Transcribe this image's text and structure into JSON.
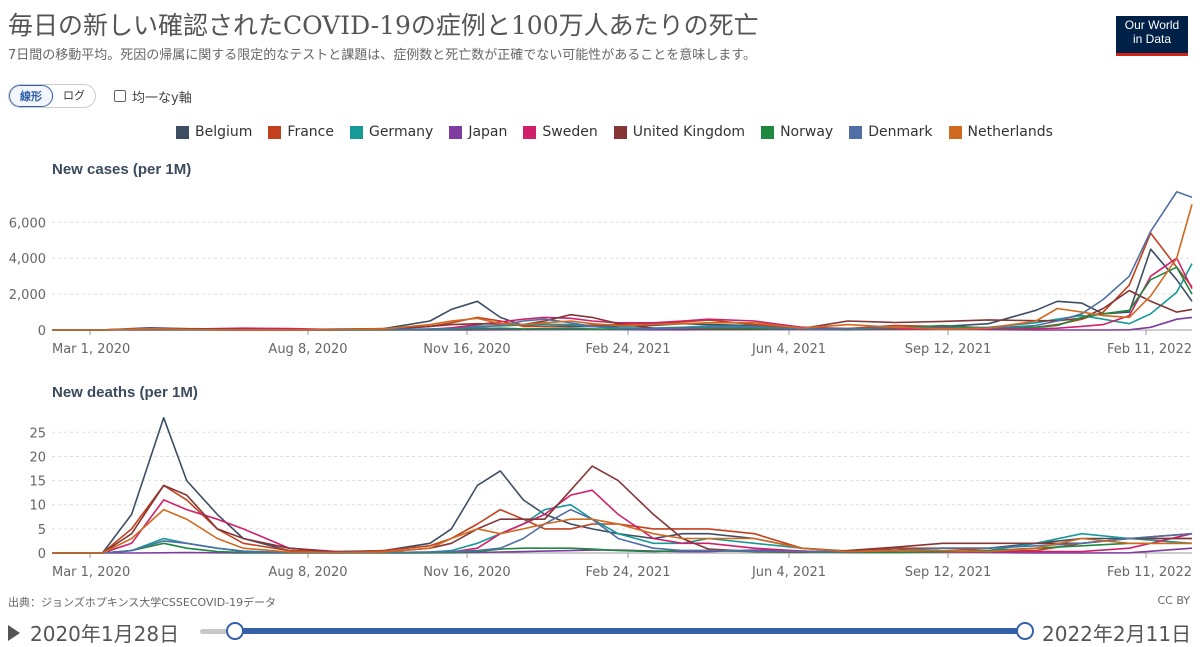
{
  "header": {
    "title": "毎日の新しい確認されたCOVID-19の症例と100万人あたりの死亡",
    "subtitle": "7日間の移動平均。死因の帰属に関する限定的なテストと課題は、症例数と死亡数が正確でない可能性があることを意味します。",
    "logo_line1": "Our World",
    "logo_line2": "in Data"
  },
  "controls": {
    "linear_label": "線形",
    "log_label": "ログ",
    "uniform_axis_label": "均一なy軸"
  },
  "footer": {
    "source": "出典：ジョンズホプキンス大学CSSECOVID-19データ",
    "license": "CC BY"
  },
  "timeline": {
    "start_label": "2020年1月28日",
    "end_label": "2022年2月11日",
    "start_fraction": 0.0,
    "end_fraction": 1.0
  },
  "chart_data": [
    {
      "type": "line",
      "title": "New cases (per 1M)",
      "x_ticks": [
        "Mar 1, 2020",
        "Aug 8, 2020",
        "Nov 16, 2020",
        "Feb 24, 2021",
        "Jun 4, 2021",
        "Sep 12, 2021",
        "Feb 11, 2022"
      ],
      "y_ticks": [
        "0",
        "2,000",
        "4,000",
        "6,000"
      ],
      "ylim": [
        0,
        7800
      ],
      "x": [
        "2020-01-28",
        "2020-03-01",
        "2020-04-01",
        "2020-05-01",
        "2020-06-01",
        "2020-07-01",
        "2020-08-01",
        "2020-09-01",
        "2020-10-01",
        "2020-10-15",
        "2020-11-01",
        "2020-11-16",
        "2020-12-01",
        "2020-12-15",
        "2021-01-01",
        "2021-01-15",
        "2021-02-01",
        "2021-02-24",
        "2021-03-15",
        "2021-04-01",
        "2021-05-01",
        "2021-06-01",
        "2021-07-01",
        "2021-08-01",
        "2021-09-01",
        "2021-10-01",
        "2021-11-01",
        "2021-11-15",
        "2021-12-01",
        "2021-12-15",
        "2022-01-01",
        "2022-01-15",
        "2022-02-01",
        "2022-02-11"
      ],
      "series": [
        {
          "name": "Belgium",
          "color": "#3d4e63",
          "values": [
            0,
            5,
            120,
            60,
            20,
            15,
            50,
            80,
            500,
            1150,
            1600,
            700,
            250,
            200,
            180,
            200,
            220,
            250,
            350,
            300,
            250,
            150,
            80,
            120,
            200,
            350,
            1100,
            1600,
            1500,
            900,
            1000,
            4500,
            2800,
            1600
          ]
        },
        {
          "name": "France",
          "color": "#c2411c",
          "values": [
            0,
            3,
            70,
            30,
            8,
            10,
            30,
            80,
            200,
            400,
            700,
            500,
            200,
            200,
            250,
            280,
            300,
            350,
            450,
            550,
            300,
            100,
            80,
            250,
            200,
            100,
            150,
            300,
            600,
            1000,
            2500,
            5400,
            3500,
            2400
          ]
        },
        {
          "name": "Germany",
          "color": "#179a97",
          "values": [
            0,
            2,
            70,
            20,
            5,
            5,
            10,
            20,
            40,
            90,
            220,
            230,
            280,
            320,
            300,
            200,
            120,
            110,
            150,
            220,
            200,
            40,
            10,
            60,
            120,
            150,
            400,
            600,
            800,
            600,
            350,
            900,
            2100,
            3700
          ]
        },
        {
          "name": "Japan",
          "color": "#7e3ba0",
          "values": [
            0,
            0,
            3,
            3,
            1,
            2,
            8,
            4,
            3,
            3,
            5,
            10,
            18,
            20,
            30,
            40,
            20,
            10,
            10,
            20,
            40,
            20,
            15,
            100,
            140,
            20,
            2,
            1,
            1,
            1,
            10,
            150,
            600,
            700
          ]
        },
        {
          "name": "Sweden",
          "color": "#d0206c",
          "values": [
            0,
            5,
            80,
            60,
            100,
            80,
            30,
            20,
            40,
            120,
            300,
            450,
            600,
            700,
            650,
            500,
            400,
            400,
            500,
            600,
            500,
            150,
            20,
            40,
            60,
            50,
            70,
            100,
            200,
            300,
            800,
            3000,
            4000,
            2300
          ]
        },
        {
          "name": "United Kingdom",
          "color": "#843637",
          "values": [
            0,
            2,
            60,
            70,
            20,
            10,
            12,
            30,
            200,
            300,
            350,
            330,
            300,
            500,
            850,
            700,
            350,
            100,
            70,
            40,
            30,
            80,
            500,
            420,
            480,
            560,
            520,
            520,
            650,
            1200,
            2200,
            1600,
            1000,
            1150
          ]
        },
        {
          "name": "Norway",
          "color": "#1e8840",
          "values": [
            0,
            3,
            40,
            10,
            3,
            2,
            5,
            10,
            20,
            30,
            80,
            100,
            60,
            70,
            70,
            60,
            40,
            80,
            120,
            100,
            80,
            50,
            20,
            100,
            250,
            100,
            150,
            250,
            700,
            900,
            1100,
            2800,
            3500,
            2000
          ]
        },
        {
          "name": "Denmark",
          "color": "#4f6fa5",
          "values": [
            0,
            5,
            60,
            20,
            10,
            5,
            20,
            30,
            60,
            70,
            150,
            250,
            500,
            600,
            400,
            200,
            80,
            80,
            100,
            150,
            150,
            50,
            50,
            150,
            100,
            100,
            250,
            500,
            900,
            1700,
            3000,
            5500,
            7700,
            7400
          ]
        },
        {
          "name": "Netherlands",
          "color": "#d06a21",
          "values": [
            0,
            3,
            70,
            30,
            8,
            5,
            20,
            60,
            300,
            500,
            650,
            350,
            300,
            400,
            500,
            350,
            250,
            300,
            350,
            400,
            400,
            100,
            300,
            150,
            60,
            100,
            500,
            1200,
            1000,
            800,
            700,
            1900,
            4000,
            7000
          ]
        }
      ]
    },
    {
      "type": "line",
      "title": "New deaths (per 1M)",
      "x_ticks": [
        "Mar 1, 2020",
        "Aug 8, 2020",
        "Nov 16, 2020",
        "Feb 24, 2021",
        "Jun 4, 2021",
        "Sep 12, 2021",
        "Feb 11, 2022"
      ],
      "y_ticks": [
        "0",
        "5",
        "10",
        "15",
        "20",
        "25"
      ],
      "ylim": [
        0,
        29
      ],
      "x": [
        "2020-01-28",
        "2020-03-01",
        "2020-03-20",
        "2020-04-10",
        "2020-04-25",
        "2020-05-15",
        "2020-06-01",
        "2020-07-01",
        "2020-08-01",
        "2020-09-01",
        "2020-10-01",
        "2020-10-15",
        "2020-11-01",
        "2020-11-16",
        "2020-12-01",
        "2020-12-15",
        "2021-01-01",
        "2021-01-15",
        "2021-02-01",
        "2021-02-24",
        "2021-03-15",
        "2021-04-01",
        "2021-05-01",
        "2021-06-01",
        "2021-07-01",
        "2021-08-01",
        "2021-09-01",
        "2021-10-01",
        "2021-11-01",
        "2021-12-01",
        "2022-01-01",
        "2022-02-11"
      ],
      "series": [
        {
          "name": "Belgium",
          "color": "#3d4e63",
          "values": [
            0,
            0,
            8,
            28,
            15,
            8,
            3,
            0.5,
            0.3,
            0.5,
            2,
            5,
            14,
            17,
            11,
            8,
            6,
            5,
            4,
            3,
            4,
            4,
            3,
            1,
            0.4,
            0.6,
            1,
            1,
            2,
            3,
            3,
            3
          ]
        },
        {
          "name": "France",
          "color": "#c2411c",
          "values": [
            0,
            0,
            5,
            14,
            11,
            5,
            2,
            0.5,
            0.2,
            0.5,
            1.5,
            3,
            6,
            9,
            7,
            5,
            5,
            6,
            6,
            5,
            5,
            5,
            4,
            1,
            0.3,
            1,
            1,
            0.5,
            0.5,
            2,
            3,
            4
          ]
        },
        {
          "name": "Germany",
          "color": "#179a97",
          "values": [
            0,
            0,
            0.5,
            3,
            2,
            1,
            0.4,
            0.1,
            0.05,
            0.1,
            0.2,
            0.5,
            2,
            4,
            6,
            9,
            10,
            7,
            4,
            2,
            2,
            3,
            2,
            1,
            0.2,
            0.1,
            0.2,
            0.5,
            2,
            4,
            3,
            2
          ]
        },
        {
          "name": "Japan",
          "color": "#7e3ba0",
          "values": [
            0,
            0,
            0.01,
            0.05,
            0.1,
            0.05,
            0.01,
            0.01,
            0.05,
            0.05,
            0.05,
            0.05,
            0.1,
            0.2,
            0.3,
            0.4,
            0.5,
            0.6,
            0.6,
            0.4,
            0.3,
            0.3,
            0.6,
            0.4,
            0.1,
            0.1,
            0.3,
            0.1,
            0.01,
            0.01,
            0.05,
            1
          ]
        },
        {
          "name": "Sweden",
          "color": "#d0206c",
          "values": [
            0,
            0,
            2,
            11,
            9,
            7,
            5,
            1,
            0.3,
            0.1,
            0.1,
            0.2,
            1,
            4,
            6,
            8,
            12,
            13,
            8,
            3,
            2,
            2,
            1,
            0.4,
            0.1,
            0.1,
            0.2,
            0.3,
            0.3,
            0.3,
            1,
            4
          ]
        },
        {
          "name": "United Kingdom",
          "color": "#843637",
          "values": [
            0,
            0,
            4,
            14,
            12,
            5,
            3,
            1,
            0.2,
            0.2,
            1,
            2,
            5,
            7,
            7,
            7,
            13,
            18,
            15,
            8,
            3,
            0.8,
            0.3,
            0.1,
            0.5,
            1.2,
            2,
            2,
            2,
            2,
            3,
            3
          ]
        },
        {
          "name": "Norway",
          "color": "#1e8840",
          "values": [
            0,
            0,
            0.5,
            2,
            1,
            0.3,
            0.1,
            0.05,
            0.01,
            0.01,
            0.05,
            0.1,
            0.3,
            0.8,
            1,
            1,
            1,
            0.8,
            0.5,
            0.3,
            0.5,
            0.5,
            0.3,
            0.2,
            0.1,
            0.1,
            0.3,
            0.5,
            1,
            1.5,
            2,
            2
          ]
        },
        {
          "name": "Denmark",
          "color": "#4f6fa5",
          "values": [
            0,
            0,
            0.5,
            2.5,
            2,
            1,
            0.3,
            0.1,
            0.05,
            0.1,
            0.2,
            0.3,
            0.5,
            1,
            3,
            6,
            9,
            7,
            3,
            1,
            0.5,
            0.5,
            0.4,
            0.3,
            0.2,
            0.5,
            1,
            1,
            1.5,
            2,
            3,
            4
          ]
        },
        {
          "name": "Netherlands",
          "color": "#d06a21",
          "values": [
            0,
            0,
            3,
            9,
            7,
            3,
            1,
            0.2,
            0.1,
            0.2,
            1,
            3,
            5,
            4,
            5,
            6,
            7,
            7,
            6,
            4,
            3,
            3,
            3,
            1,
            0.3,
            0.5,
            0.5,
            0.3,
            1,
            3,
            2,
            2
          ]
        }
      ]
    }
  ]
}
